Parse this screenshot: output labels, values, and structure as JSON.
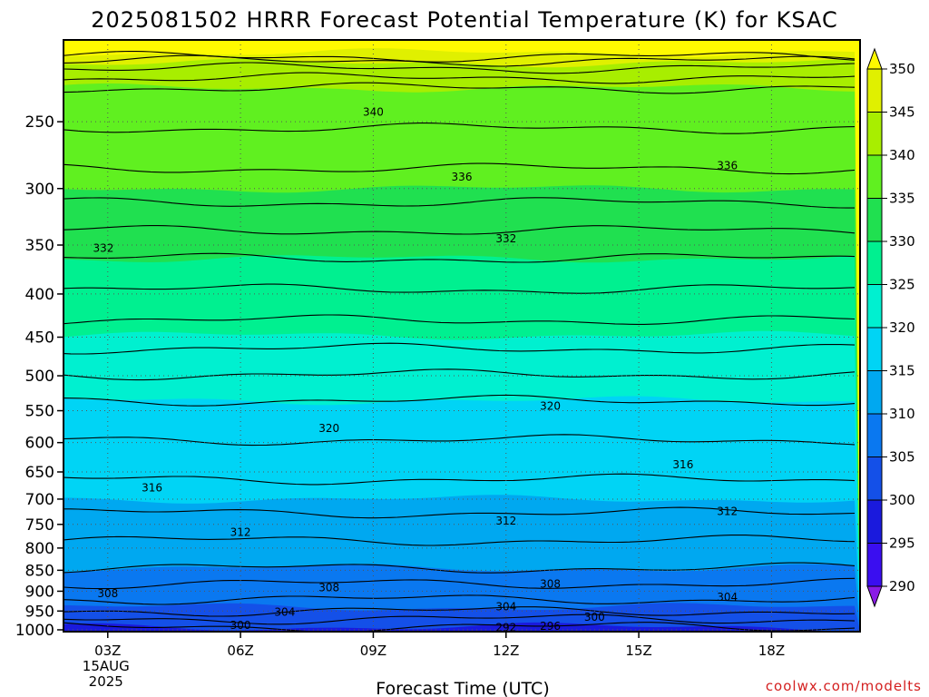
{
  "title": "2025081502 HRRR Forecast Potential Temperature (K) for KSAC",
  "credit": "coolwx.com/modelts",
  "chart_data": {
    "type": "filled-contour",
    "title": "2025081502 HRRR Forecast Potential Temperature (K) for KSAC",
    "xlabel": "Forecast Time (UTC)",
    "ylabel": "",
    "x_range_hours_utc": [
      2,
      20
    ],
    "x_ticks": [
      {
        "hour": 3,
        "label": "03Z",
        "sublabel": [
          "15AUG",
          "2025"
        ]
      },
      {
        "hour": 6,
        "label": "06Z"
      },
      {
        "hour": 9,
        "label": "09Z"
      },
      {
        "hour": 12,
        "label": "12Z"
      },
      {
        "hour": 15,
        "label": "15Z"
      },
      {
        "hour": 18,
        "label": "18Z"
      }
    ],
    "y_scale": "log-pressure (inverted)",
    "y_range_hpa": [
      1005,
      200
    ],
    "y_ticks_hpa": [
      250,
      300,
      350,
      400,
      450,
      500,
      550,
      600,
      650,
      700,
      750,
      800,
      850,
      900,
      950,
      1000
    ],
    "grid": "dotted",
    "surface_band": "terrain below ~1000 hPa",
    "colorbar": {
      "levels": [
        290,
        295,
        300,
        305,
        310,
        315,
        320,
        325,
        330,
        335,
        340,
        345,
        350
      ],
      "colors": [
        "#8a1ce6",
        "#3a0ef0",
        "#1a1add",
        "#1450e8",
        "#0a78f0",
        "#00a8f0",
        "#00d4f5",
        "#00f0d0",
        "#00f090",
        "#20e050",
        "#60f020",
        "#a8ee00",
        "#e0f000",
        "#fffa00"
      ],
      "extend": "both"
    },
    "isotherm_levels_k": [
      292,
      296,
      300,
      304,
      308,
      312,
      316,
      320,
      324,
      328,
      332,
      336,
      340,
      344,
      348
    ],
    "color_fill_levels_hpa": [
      {
        "theta": 350,
        "p": 207
      },
      {
        "theta": 345,
        "p": 213
      },
      {
        "theta": 340,
        "p": 228
      },
      {
        "theta": 335,
        "p": 300
      },
      {
        "theta": 330,
        "p": 363
      },
      {
        "theta": 325,
        "p": 448
      },
      {
        "theta": 320,
        "p": 535
      },
      {
        "theta": 315,
        "p": 700
      },
      {
        "theta": 310,
        "p": 845
      },
      {
        "theta": 305,
        "p": 940
      },
      {
        "theta": 300,
        "p": 992
      }
    ],
    "contour_labels": [
      {
        "text": "340",
        "hour": 9.0,
        "p": 243
      },
      {
        "text": "336",
        "hour": 11.0,
        "p": 290
      },
      {
        "text": "336",
        "hour": 17.0,
        "p": 281
      },
      {
        "text": "332",
        "hour": 2.9,
        "p": 352
      },
      {
        "text": "332",
        "hour": 12.0,
        "p": 343
      },
      {
        "text": "320",
        "hour": 8.0,
        "p": 576
      },
      {
        "text": "320",
        "hour": 13.0,
        "p": 542
      },
      {
        "text": "316",
        "hour": 4.0,
        "p": 677
      },
      {
        "text": "316",
        "hour": 16.0,
        "p": 636
      },
      {
        "text": "312",
        "hour": 6.0,
        "p": 764
      },
      {
        "text": "312",
        "hour": 12.0,
        "p": 741
      },
      {
        "text": "312",
        "hour": 17.0,
        "p": 722
      },
      {
        "text": "308",
        "hour": 3.0,
        "p": 903
      },
      {
        "text": "308",
        "hour": 8.0,
        "p": 889
      },
      {
        "text": "308",
        "hour": 13.0,
        "p": 880
      },
      {
        "text": "304",
        "hour": 7.0,
        "p": 950
      },
      {
        "text": "304",
        "hour": 12.0,
        "p": 937
      },
      {
        "text": "304",
        "hour": 17.0,
        "p": 912
      },
      {
        "text": "300",
        "hour": 6.0,
        "p": 985
      },
      {
        "text": "300",
        "hour": 14.0,
        "p": 963
      },
      {
        "text": "296",
        "hour": 13.0,
        "p": 988
      },
      {
        "text": "292",
        "hour": 12.0,
        "p": 992
      }
    ]
  }
}
